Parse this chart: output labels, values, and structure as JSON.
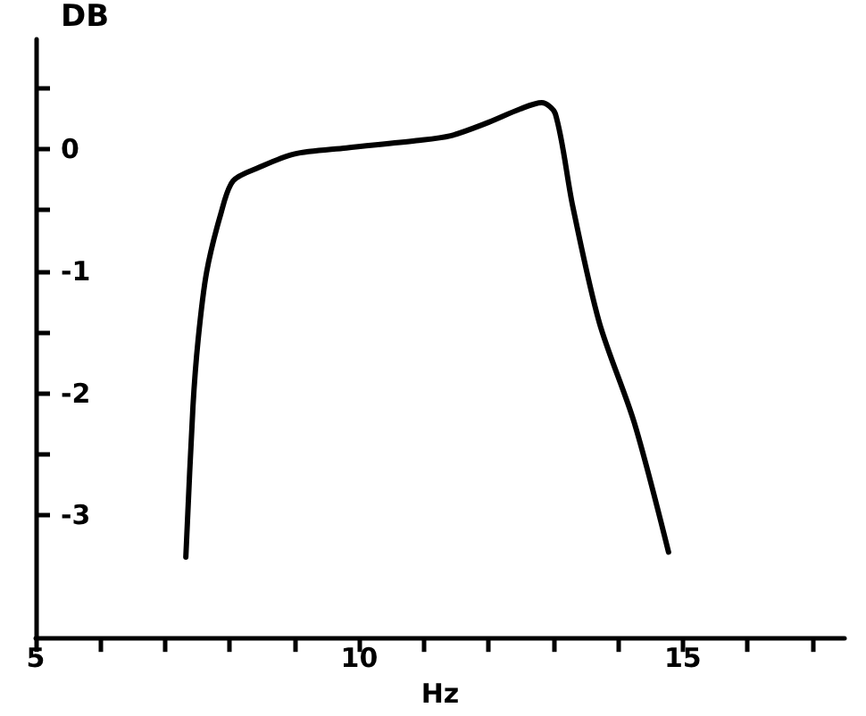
{
  "chart_data": {
    "type": "line",
    "xlabel": "Hz",
    "ylabel": "DB",
    "series": [
      {
        "color": "#000000",
        "x": [
          7.32,
          7.43,
          7.51,
          7.64,
          7.86,
          8.05,
          8.45,
          8.99,
          9.8,
          10.88,
          11.41,
          11.95,
          12.49,
          12.82,
          13.03,
          13.3,
          13.71,
          14.25,
          14.78
        ],
        "values": [
          -3.34,
          -2.11,
          -1.56,
          -1.01,
          -0.53,
          -0.26,
          -0.15,
          -0.04,
          0.01,
          0.07,
          0.11,
          0.21,
          0.33,
          0.38,
          0.29,
          -0.47,
          -1.42,
          -2.24,
          -3.3
        ]
      }
    ],
    "xlim": [
      5,
      17.5
    ],
    "ylim": [
      -4,
      0.9
    ],
    "xticks": [
      5,
      {
        "value": 6,
        "label": null
      },
      {
        "value": 7,
        "label": null
      },
      {
        "value": 8,
        "label": null
      },
      {
        "value": 9,
        "label": null
      },
      10,
      {
        "value": 11,
        "label": null
      },
      {
        "value": 12,
        "label": null
      },
      {
        "value": 13,
        "label": null
      },
      {
        "value": 14,
        "label": null
      },
      15,
      {
        "value": 16,
        "label": null
      },
      {
        "value": 17,
        "label": null
      }
    ],
    "yticks": [
      {
        "value": 0.5,
        "label": null
      },
      0,
      {
        "value": -0.5,
        "label": null
      },
      -1,
      {
        "value": -1.5,
        "label": null
      },
      -2,
      {
        "value": -2.5,
        "label": null
      },
      -3
    ],
    "grid": false,
    "marker": "none",
    "line_style": "solid"
  }
}
